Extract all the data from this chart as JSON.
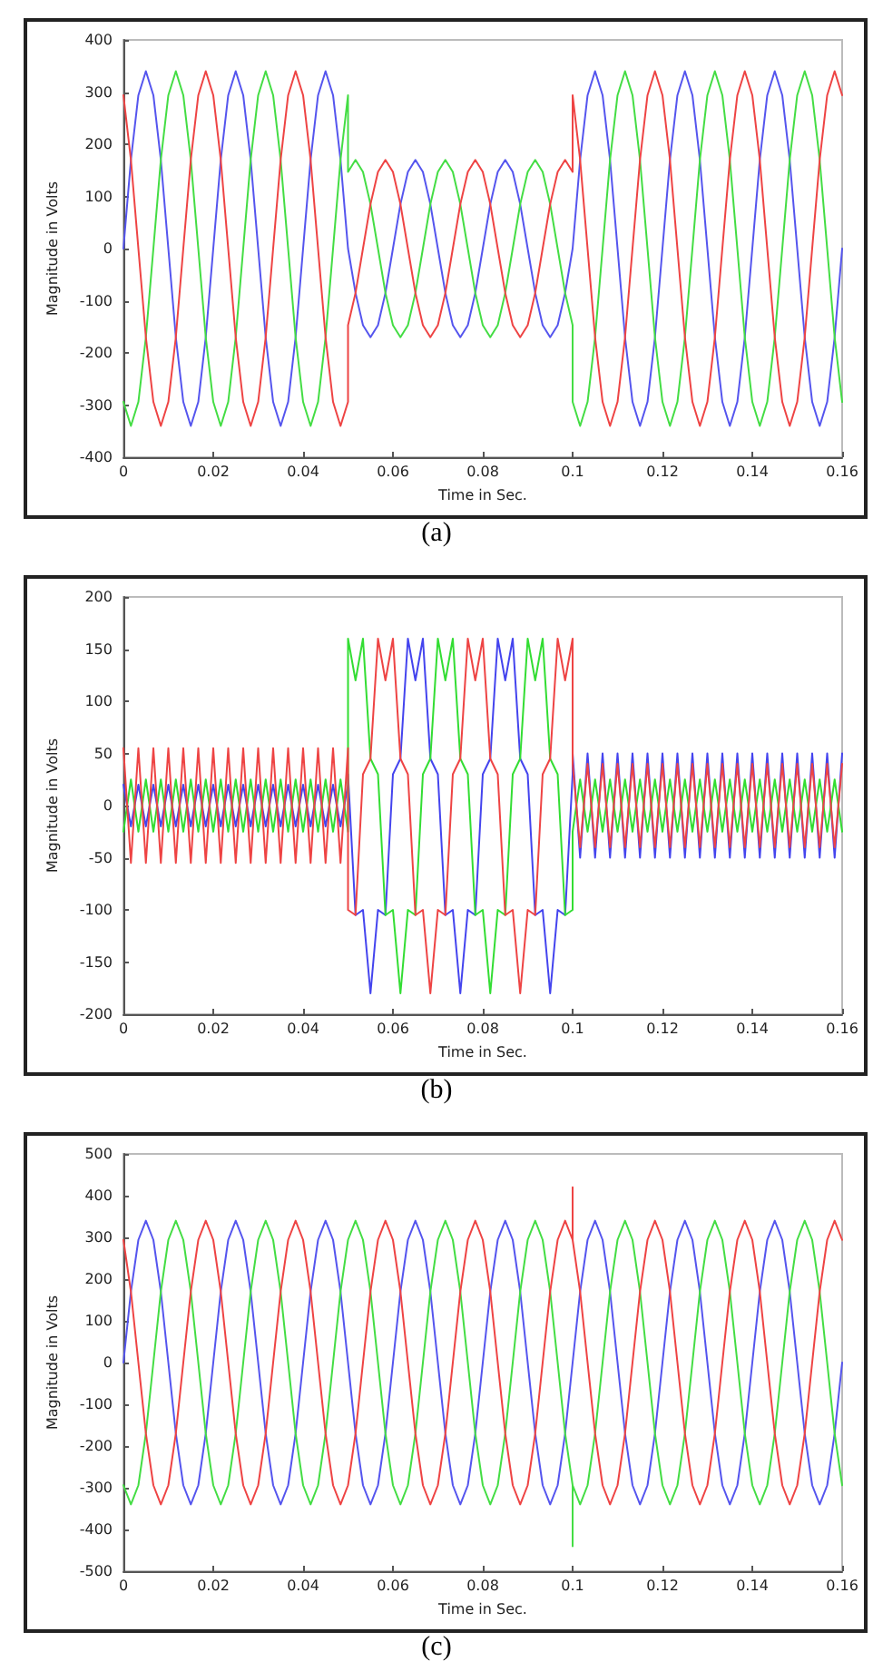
{
  "chart_data": [
    {
      "type": "line",
      "xlabel": "Time in Sec.",
      "ylabel": "Magnitude in Volts",
      "annotations": [
        "(a)"
      ],
      "xlim": [
        0,
        0.16
      ],
      "xticks": [
        0,
        0.02,
        0.04,
        0.06,
        0.08,
        0.1,
        0.12,
        0.14,
        0.16
      ],
      "ylim": [
        -400,
        400
      ],
      "yticks": [
        -400,
        -300,
        -200,
        -100,
        0,
        100,
        200,
        300,
        400
      ],
      "grid": false,
      "marker": "none",
      "x": [
        0,
        0.00167,
        0.00333,
        0.005,
        0.00667,
        0.00833,
        0.01,
        0.01167,
        0.01333,
        0.015,
        0.01667,
        0.01833,
        0.02,
        0.02167,
        0.02333,
        0.025,
        0.02667,
        0.02833,
        0.03,
        0.03167,
        0.03333,
        0.035,
        0.03667,
        0.03833,
        0.04,
        0.04167,
        0.04333,
        0.045,
        0.04667,
        0.04833,
        0.05,
        0.05,
        0.05167,
        0.05333,
        0.055,
        0.05667,
        0.05833,
        0.06,
        0.06167,
        0.06333,
        0.065,
        0.06667,
        0.06833,
        0.07,
        0.07167,
        0.07333,
        0.075,
        0.07667,
        0.07833,
        0.08,
        0.08167,
        0.08333,
        0.085,
        0.08667,
        0.08833,
        0.09,
        0.09167,
        0.09333,
        0.095,
        0.09667,
        0.09833,
        0.1,
        0.1,
        0.10167,
        0.10333,
        0.105,
        0.10667,
        0.10833,
        0.11,
        0.11167,
        0.11333,
        0.115,
        0.11667,
        0.11833,
        0.12,
        0.12167,
        0.12333,
        0.125,
        0.12667,
        0.12833,
        0.13,
        0.13167,
        0.13333,
        0.135,
        0.13667,
        0.13833,
        0.14,
        0.14167,
        0.14333,
        0.145,
        0.14667,
        0.14833,
        0.15,
        0.15167,
        0.15333,
        0.155,
        0.15667,
        0.15833,
        0.16
      ],
      "series": [
        {
          "color": "#5555ee",
          "values": [
            0,
            170,
            294,
            340,
            294,
            170,
            0,
            -170,
            -294,
            -340,
            -294,
            -170,
            0,
            170,
            294,
            340,
            294,
            170,
            0,
            -170,
            -294,
            -340,
            -294,
            -170,
            0,
            170,
            294,
            340,
            294,
            170,
            0,
            0,
            -85,
            -147,
            -170,
            -147,
            -85,
            0,
            85,
            147,
            170,
            147,
            85,
            0,
            -85,
            -147,
            -170,
            -147,
            -85,
            0,
            85,
            147,
            170,
            147,
            85,
            0,
            -85,
            -147,
            -170,
            -147,
            -85,
            0,
            0,
            170,
            294,
            340,
            294,
            170,
            0,
            -170,
            -294,
            -340,
            -294,
            -170,
            0,
            170,
            294,
            340,
            294,
            170,
            0,
            -170,
            -294,
            -340,
            -294,
            -170,
            0,
            170,
            294,
            340,
            294,
            170,
            0,
            -170,
            -294,
            -340,
            -294,
            -170,
            0
          ]
        },
        {
          "color": "#44dd44",
          "values": [
            -294,
            -340,
            -294,
            -170,
            0,
            170,
            294,
            340,
            294,
            170,
            0,
            -170,
            -294,
            -340,
            -294,
            -170,
            0,
            170,
            294,
            340,
            294,
            170,
            0,
            -170,
            -294,
            -340,
            -294,
            -170,
            0,
            170,
            294,
            147,
            170,
            147,
            85,
            0,
            -85,
            -147,
            -170,
            -147,
            -85,
            0,
            85,
            147,
            170,
            147,
            85,
            0,
            -85,
            -147,
            -170,
            -147,
            -85,
            0,
            85,
            147,
            170,
            147,
            85,
            0,
            -85,
            -147,
            -294,
            -340,
            -294,
            -170,
            0,
            170,
            294,
            340,
            294,
            170,
            0,
            -170,
            -294,
            -340,
            -294,
            -170,
            0,
            170,
            294,
            340,
            294,
            170,
            0,
            -170,
            -294,
            -340,
            -294,
            -170,
            0,
            170,
            294,
            340,
            294,
            170,
            0,
            -170,
            -294
          ]
        },
        {
          "color": "#ee4444",
          "values": [
            294,
            170,
            0,
            -170,
            -294,
            -340,
            -294,
            -170,
            0,
            170,
            294,
            340,
            294,
            170,
            0,
            -170,
            -294,
            -340,
            -294,
            -170,
            0,
            170,
            294,
            340,
            294,
            170,
            0,
            -170,
            -294,
            -340,
            -294,
            -147,
            -85,
            0,
            85,
            147,
            170,
            147,
            85,
            0,
            -85,
            -147,
            -170,
            -147,
            -85,
            0,
            85,
            147,
            170,
            147,
            85,
            0,
            -85,
            -147,
            -170,
            -147,
            -85,
            0,
            85,
            147,
            170,
            147,
            294,
            170,
            0,
            -170,
            -294,
            -340,
            -294,
            -170,
            0,
            170,
            294,
            340,
            294,
            170,
            0,
            -170,
            -294,
            -340,
            -294,
            -170,
            0,
            170,
            294,
            340,
            294,
            170,
            0,
            -170,
            -294,
            -340,
            -294,
            -170,
            0,
            170,
            294,
            340,
            294
          ]
        }
      ]
    },
    {
      "type": "line",
      "xlabel": "Time in Sec.",
      "ylabel": "Magnitude in Volts",
      "annotations": [
        "(b)"
      ],
      "xlim": [
        0,
        0.16
      ],
      "xticks": [
        0,
        0.02,
        0.04,
        0.06,
        0.08,
        0.1,
        0.12,
        0.14,
        0.16
      ],
      "ylim": [
        -200,
        200
      ],
      "yticks": [
        -200,
        -150,
        -100,
        -50,
        0,
        50,
        100,
        150,
        200
      ],
      "grid": false,
      "marker": "none",
      "x": [
        0,
        0.00167,
        0.00333,
        0.005,
        0.00667,
        0.00833,
        0.01,
        0.01167,
        0.01333,
        0.015,
        0.01667,
        0.01833,
        0.02,
        0.02167,
        0.02333,
        0.025,
        0.02667,
        0.02833,
        0.03,
        0.03167,
        0.03333,
        0.035,
        0.03667,
        0.03833,
        0.04,
        0.04167,
        0.04333,
        0.045,
        0.04667,
        0.04833,
        0.05,
        0.05,
        0.05167,
        0.05333,
        0.055,
        0.05667,
        0.05833,
        0.06,
        0.06167,
        0.06333,
        0.065,
        0.06667,
        0.06833,
        0.07,
        0.07167,
        0.07333,
        0.075,
        0.07667,
        0.07833,
        0.08,
        0.08167,
        0.08333,
        0.085,
        0.08667,
        0.08833,
        0.09,
        0.09167,
        0.09333,
        0.095,
        0.09667,
        0.09833,
        0.1,
        0.1,
        0.10167,
        0.10333,
        0.105,
        0.10667,
        0.10833,
        0.11,
        0.11167,
        0.11333,
        0.115,
        0.11667,
        0.11833,
        0.12,
        0.12167,
        0.12333,
        0.125,
        0.12667,
        0.12833,
        0.13,
        0.13167,
        0.13333,
        0.135,
        0.13667,
        0.13833,
        0.14,
        0.14167,
        0.14333,
        0.145,
        0.14667,
        0.14833,
        0.15,
        0.15167,
        0.15333,
        0.155,
        0.15667,
        0.15833,
        0.16
      ],
      "series": [
        {
          "color": "#4444ee",
          "values": [
            20,
            -20,
            20,
            -20,
            20,
            -20,
            20,
            -20,
            20,
            -20,
            20,
            -20,
            20,
            -20,
            20,
            -20,
            20,
            -20,
            20,
            -20,
            20,
            -20,
            20,
            -20,
            20,
            -20,
            20,
            -20,
            20,
            -20,
            20,
            30,
            -105,
            -100,
            -180,
            -100,
            -105,
            30,
            45,
            160,
            120,
            160,
            45,
            30,
            -105,
            -100,
            -180,
            -100,
            -105,
            30,
            45,
            160,
            120,
            160,
            45,
            30,
            -105,
            -100,
            -180,
            -100,
            -105,
            30,
            50,
            -50,
            50,
            -50,
            50,
            -50,
            50,
            -50,
            50,
            -50,
            50,
            -50,
            50,
            -50,
            50,
            -50,
            50,
            -50,
            50,
            -50,
            50,
            -50,
            50,
            -50,
            50,
            -50,
            50,
            -50,
            50,
            -50,
            50,
            -50,
            50,
            -50,
            50,
            -50,
            50
          ]
        },
        {
          "color": "#33dd33",
          "values": [
            -25,
            25,
            -25,
            25,
            -25,
            25,
            -25,
            25,
            -25,
            25,
            -25,
            25,
            -25,
            25,
            -25,
            25,
            -25,
            25,
            -25,
            25,
            -25,
            25,
            -25,
            25,
            -25,
            25,
            -25,
            25,
            -25,
            25,
            -25,
            160,
            120,
            160,
            45,
            30,
            -105,
            -100,
            -180,
            -100,
            -105,
            30,
            45,
            160,
            120,
            160,
            45,
            30,
            -105,
            -100,
            -180,
            -100,
            -105,
            30,
            45,
            160,
            120,
            160,
            45,
            30,
            -105,
            -100,
            -25,
            25,
            -25,
            25,
            -25,
            25,
            -25,
            25,
            -25,
            25,
            -25,
            25,
            -25,
            25,
            -25,
            25,
            -25,
            25,
            -25,
            25,
            -25,
            25,
            -25,
            25,
            -25,
            25,
            -25,
            25,
            -25,
            25,
            -25,
            25,
            -25,
            25,
            -25,
            25,
            -25
          ]
        },
        {
          "color": "#ee4444",
          "values": [
            55,
            -55,
            55,
            -55,
            55,
            -55,
            55,
            -55,
            55,
            -55,
            55,
            -55,
            55,
            -55,
            55,
            -55,
            55,
            -55,
            55,
            -55,
            55,
            -55,
            55,
            -55,
            55,
            -55,
            55,
            -55,
            55,
            -55,
            55,
            -100,
            -105,
            30,
            45,
            160,
            120,
            160,
            45,
            30,
            -105,
            -100,
            -180,
            -100,
            -105,
            30,
            45,
            160,
            120,
            160,
            45,
            30,
            -105,
            -100,
            -180,
            -100,
            -105,
            30,
            45,
            160,
            120,
            160,
            40,
            -40,
            40,
            -40,
            40,
            -40,
            40,
            -40,
            40,
            -40,
            40,
            -40,
            40,
            -40,
            40,
            -40,
            40,
            -40,
            40,
            -40,
            40,
            -40,
            40,
            -40,
            40,
            -40,
            40,
            -40,
            40,
            -40,
            40,
            -40,
            40,
            -40,
            40,
            -40,
            40
          ]
        }
      ]
    },
    {
      "type": "line",
      "xlabel": "Time in Sec.",
      "ylabel": "Magnitude in Volts",
      "annotations": [
        "(c)"
      ],
      "xlim": [
        0,
        0.16
      ],
      "xticks": [
        0,
        0.02,
        0.04,
        0.06,
        0.08,
        0.1,
        0.12,
        0.14,
        0.16
      ],
      "ylim": [
        -500,
        500
      ],
      "yticks": [
        -500,
        -400,
        -300,
        -200,
        -100,
        0,
        100,
        200,
        300,
        400,
        500
      ],
      "grid": false,
      "marker": "none",
      "x": [
        0,
        0.00167,
        0.00333,
        0.005,
        0.00667,
        0.00833,
        0.01,
        0.01167,
        0.01333,
        0.015,
        0.01667,
        0.01833,
        0.02,
        0.02167,
        0.02333,
        0.025,
        0.02667,
        0.02833,
        0.03,
        0.03167,
        0.03333,
        0.035,
        0.03667,
        0.03833,
        0.04,
        0.04167,
        0.04333,
        0.045,
        0.04667,
        0.04833,
        0.05,
        0.05167,
        0.05333,
        0.055,
        0.05667,
        0.05833,
        0.06,
        0.06167,
        0.06333,
        0.065,
        0.06667,
        0.06833,
        0.07,
        0.07167,
        0.07333,
        0.075,
        0.07667,
        0.07833,
        0.08,
        0.08167,
        0.08333,
        0.085,
        0.08667,
        0.08833,
        0.09,
        0.09167,
        0.09333,
        0.095,
        0.09667,
        0.09833,
        0.1,
        0.1,
        0.1,
        0.10167,
        0.10333,
        0.105,
        0.10667,
        0.10833,
        0.11,
        0.11167,
        0.11333,
        0.115,
        0.11667,
        0.11833,
        0.12,
        0.12167,
        0.12333,
        0.125,
        0.12667,
        0.12833,
        0.13,
        0.13167,
        0.13333,
        0.135,
        0.13667,
        0.13833,
        0.14,
        0.14167,
        0.14333,
        0.145,
        0.14667,
        0.14833,
        0.15,
        0.15167,
        0.15333,
        0.155,
        0.15667,
        0.15833,
        0.16
      ],
      "series": [
        {
          "color": "#5555ee",
          "values": [
            0,
            170,
            294,
            340,
            294,
            170,
            0,
            -170,
            -294,
            -340,
            -294,
            -170,
            0,
            170,
            294,
            340,
            294,
            170,
            0,
            -170,
            -294,
            -340,
            -294,
            -170,
            0,
            170,
            294,
            340,
            294,
            170,
            0,
            -170,
            -294,
            -340,
            -294,
            -170,
            0,
            170,
            294,
            340,
            294,
            170,
            0,
            -170,
            -294,
            -340,
            -294,
            -170,
            0,
            170,
            294,
            340,
            294,
            170,
            0,
            -170,
            -294,
            -340,
            -294,
            -170,
            0,
            0,
            0,
            170,
            294,
            340,
            294,
            170,
            0,
            -170,
            -294,
            -340,
            -294,
            -170,
            0,
            170,
            294,
            340,
            294,
            170,
            0,
            -170,
            -294,
            -340,
            -294,
            -170,
            0,
            170,
            294,
            340,
            294,
            170,
            0,
            -170,
            -294,
            -340,
            -294,
            -170,
            0
          ]
        },
        {
          "color": "#44dd44",
          "values": [
            -294,
            -340,
            -294,
            -170,
            0,
            170,
            294,
            340,
            294,
            170,
            0,
            -170,
            -294,
            -340,
            -294,
            -170,
            0,
            170,
            294,
            340,
            294,
            170,
            0,
            -170,
            -294,
            -340,
            -294,
            -170,
            0,
            170,
            294,
            340,
            294,
            170,
            0,
            -170,
            -294,
            -340,
            -294,
            -170,
            0,
            170,
            294,
            340,
            294,
            170,
            0,
            -170,
            -294,
            -340,
            -294,
            -170,
            0,
            170,
            294,
            340,
            294,
            170,
            0,
            -170,
            -294,
            -440,
            -294,
            -340,
            -294,
            -170,
            0,
            170,
            294,
            340,
            294,
            170,
            0,
            -170,
            -294,
            -340,
            -294,
            -170,
            0,
            170,
            294,
            340,
            294,
            170,
            0,
            -170,
            -294,
            -340,
            -294,
            -170,
            0,
            170,
            294,
            340,
            294,
            170,
            0,
            -170,
            -294
          ]
        },
        {
          "color": "#ee4444",
          "values": [
            294,
            170,
            0,
            -170,
            -294,
            -340,
            -294,
            -170,
            0,
            170,
            294,
            340,
            294,
            170,
            0,
            -170,
            -294,
            -340,
            -294,
            -170,
            0,
            170,
            294,
            340,
            294,
            170,
            0,
            -170,
            -294,
            -340,
            -294,
            -170,
            0,
            170,
            294,
            340,
            294,
            170,
            0,
            -170,
            -294,
            -340,
            -294,
            -170,
            0,
            170,
            294,
            340,
            294,
            170,
            0,
            -170,
            -294,
            -340,
            -294,
            -170,
            0,
            170,
            294,
            340,
            294,
            420,
            294,
            170,
            0,
            -170,
            -294,
            -340,
            -294,
            -170,
            0,
            170,
            294,
            340,
            294,
            170,
            0,
            -170,
            -294,
            -340,
            -294,
            -170,
            0,
            170,
            294,
            340,
            294,
            170,
            0,
            -170,
            -294,
            -340,
            -294,
            -170,
            0,
            170,
            294,
            340,
            294
          ]
        }
      ]
    }
  ]
}
